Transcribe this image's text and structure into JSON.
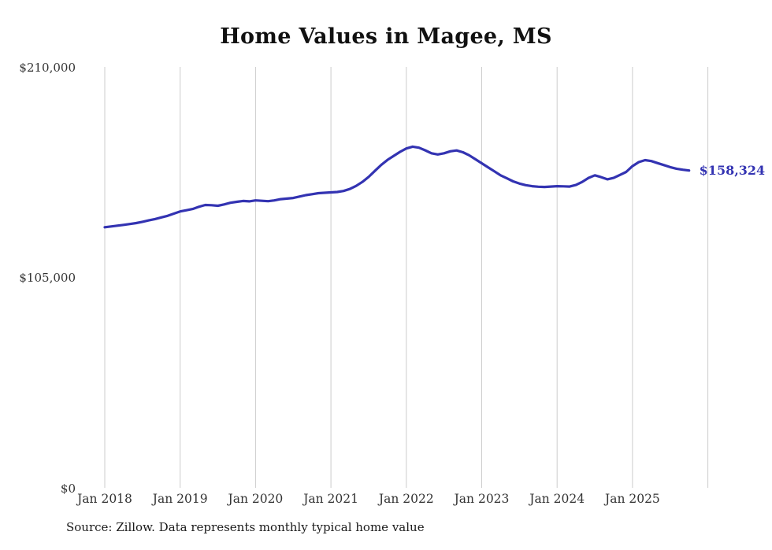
{
  "title": "Home Values in Magee, MS",
  "annotation": "$158,324",
  "source": "Source: Zillow. Data represents monthly typical home value",
  "colors": {
    "line": "#3333b2",
    "grid": "#cccccc",
    "text": "#333333"
  },
  "y_axis": {
    "labels": [
      "$210,000",
      "$105,000",
      "$0"
    ]
  },
  "chart_data": {
    "type": "line",
    "title": "Home Values in Magee, MS",
    "x_start": "2018-01",
    "x_end": "2025-10",
    "frequency": "monthly",
    "ylim": [
      0,
      210000
    ],
    "y_ticks": [
      0,
      105000,
      210000
    ],
    "y_tick_labels": [
      "$0",
      "$105,000",
      "$210,000"
    ],
    "x_tick_labels": [
      "Jan 2018",
      "Jan 2019",
      "Jan 2020",
      "Jan 2021",
      "Jan 2022",
      "Jan 2023",
      "Jan 2024",
      "Jan 2025"
    ],
    "gridlines": 9,
    "grid": "vertical-only",
    "legend": "none",
    "latest_value": 158324,
    "latest_value_label": "$158,324",
    "series": [
      {
        "name": "Typical home value",
        "values": [
          130000,
          130400,
          130800,
          131200,
          131600,
          132100,
          132700,
          133400,
          134100,
          134900,
          135700,
          136800,
          137900,
          138500,
          139100,
          140200,
          141100,
          141000,
          140700,
          141400,
          142200,
          142700,
          143100,
          142900,
          143400,
          143200,
          143000,
          143400,
          144000,
          144300,
          144600,
          145300,
          146000,
          146500,
          147000,
          147200,
          147400,
          147600,
          148100,
          149100,
          150600,
          152600,
          155100,
          158100,
          161100,
          163600,
          165600,
          167600,
          169300,
          170200,
          169700,
          168400,
          166900,
          166300,
          166900,
          167900,
          168300,
          167400,
          165900,
          163900,
          161900,
          159900,
          157900,
          155900,
          154400,
          152900,
          151800,
          151000,
          150500,
          150200,
          150100,
          150300,
          150500,
          150400,
          150300,
          151100,
          152600,
          154600,
          155900,
          155000,
          153900,
          154600,
          156100,
          157600,
          160500,
          162500,
          163500,
          163000,
          162000,
          161000,
          160000,
          159200,
          158700,
          158324
        ]
      }
    ]
  }
}
